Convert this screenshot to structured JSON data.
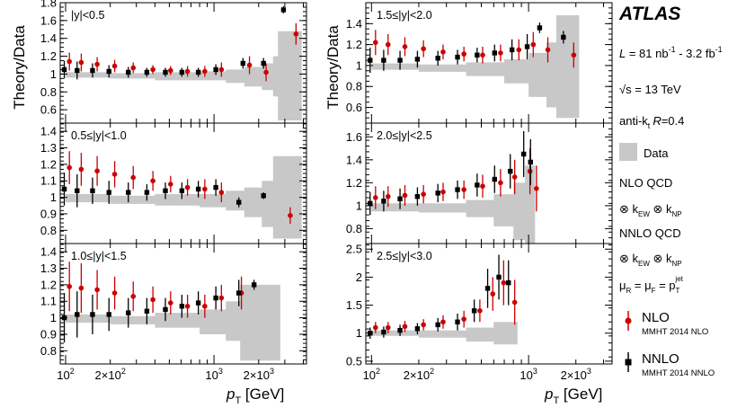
{
  "info": {
    "experiment": "ATLAS",
    "lumi_prefix": "L",
    "lumi_value": " = 81 nb",
    "lumi_exp1": "-1",
    "lumi_mid": " - 3.2 fb",
    "lumi_exp2": "-1",
    "sqrt_s_symbol": "√s",
    "energy": " = 13 TeV",
    "algo_prefix": "anti-k",
    "algo_sub": "t",
    "algo_R": "R",
    "algo_value": "=0.4"
  },
  "legend": {
    "data_label": "Data",
    "nlo_qcd": "NLO QCD",
    "kew_line": "⊗ k",
    "kew_sub": "EW",
    "knp_mid": " ⊗ k",
    "knp_sub": "NP",
    "nnlo_qcd": "NNLO QCD",
    "scale_mu": "μ",
    "scale_R": "R",
    "scale_eq": " = μ",
    "scale_F": "F",
    "scale_eq2": " = p",
    "scale_T": "T",
    "scale_jet": "jet",
    "nlo_name": "NLO",
    "nlo_pdf": "MMHT 2014 NLO",
    "nnlo_name": "NNLO",
    "nnlo_pdf": "MMHT 2014 NNLO"
  },
  "colors": {
    "data_band": "#c8c8c8",
    "nlo": "#cc0000",
    "nnlo": "#000000"
  },
  "axes": {
    "ylabel": "Theory/Data",
    "xlabel_p": "p",
    "xlabel_sub": "T",
    "xlabel_unit": " [GeV]",
    "x_tick_labels": [
      {
        "v": 100,
        "base": "10",
        "exp": "2"
      },
      {
        "v": 200,
        "base": "2×10",
        "exp": "2"
      },
      {
        "v": 1000,
        "base": "10",
        "exp": "3"
      },
      {
        "v": 2000,
        "base": "2×10",
        "exp": "3"
      }
    ]
  },
  "chart_data": [
    {
      "type": "scatter",
      "title": "|y|<0.5",
      "xscale": "log",
      "xlim": [
        92,
        4200
      ],
      "ylim": [
        0.45,
        1.8
      ],
      "yticks": [
        0.6,
        0.8,
        1,
        1.2,
        1.4,
        1.6,
        1.8
      ],
      "band": {
        "x": [
          100,
          200,
          400,
          800,
          1200,
          1600,
          2100,
          2500,
          2700,
          3000,
          3900
        ],
        "up": [
          1.02,
          1.01,
          1.02,
          1.03,
          1.05,
          1.08,
          1.12,
          1.2,
          1.48,
          1.48,
          1.48
        ],
        "down": [
          0.96,
          0.95,
          0.93,
          0.93,
          0.9,
          0.86,
          0.82,
          0.75,
          0.48,
          0.48,
          0.48
        ]
      },
      "series": [
        {
          "name": "NLO",
          "points": [
            [
              104,
              1.14,
              0.1
            ],
            [
              125,
              1.13,
              0.1
            ],
            [
              160,
              1.11,
              0.08
            ],
            [
              210,
              1.09,
              0.07
            ],
            [
              280,
              1.07,
              0.06
            ],
            [
              380,
              1.05,
              0.05
            ],
            [
              500,
              1.04,
              0.05
            ],
            [
              650,
              1.03,
              0.06
            ],
            [
              850,
              1.03,
              0.06
            ],
            [
              1100,
              1.05,
              0.08
            ],
            [
              1700,
              1.1,
              0.1
            ],
            [
              2200,
              1.02,
              0.1
            ],
            [
              3500,
              1.45,
              0.12
            ]
          ]
        },
        {
          "name": "NNLO",
          "points": [
            [
              100,
              1.05,
              0.1
            ],
            [
              122,
              1.04,
              0.1
            ],
            [
              155,
              1.04,
              0.08
            ],
            [
              200,
              1.03,
              0.07
            ],
            [
              270,
              1.02,
              0.06
            ],
            [
              360,
              1.02,
              0.05
            ],
            [
              480,
              1.02,
              0.05
            ],
            [
              620,
              1.02,
              0.05
            ],
            [
              800,
              1.02,
              0.05
            ],
            [
              1050,
              1.05,
              0.06
            ],
            [
              1600,
              1.12,
              0.06
            ],
            [
              2200,
              1.12,
              0.06
            ],
            [
              3000,
              1.72,
              0.04
            ]
          ]
        }
      ]
    },
    {
      "type": "scatter",
      "title": "0.5≤|y|<1.0",
      "xscale": "log",
      "xlim": [
        92,
        4200
      ],
      "ylim": [
        0.72,
        1.45
      ],
      "yticks": [
        0.8,
        0.9,
        1,
        1.1,
        1.2,
        1.3,
        1.4
      ],
      "band": {
        "x": [
          100,
          200,
          400,
          800,
          1200,
          1600,
          2100,
          2500,
          3000,
          3900
        ],
        "up": [
          1.02,
          1.01,
          1.02,
          1.02,
          1.04,
          1.06,
          1.1,
          1.25,
          1.25,
          1.25
        ],
        "down": [
          0.97,
          0.96,
          0.95,
          0.94,
          0.92,
          0.88,
          0.82,
          0.75,
          0.75,
          0.75
        ]
      },
      "series": [
        {
          "name": "NLO",
          "points": [
            [
              104,
              1.18,
              0.1
            ],
            [
              125,
              1.17,
              0.1
            ],
            [
              160,
              1.16,
              0.09
            ],
            [
              210,
              1.14,
              0.08
            ],
            [
              280,
              1.12,
              0.07
            ],
            [
              380,
              1.1,
              0.06
            ],
            [
              500,
              1.08,
              0.05
            ],
            [
              650,
              1.06,
              0.05
            ],
            [
              850,
              1.05,
              0.06
            ],
            [
              1100,
              1.03,
              0.06
            ],
            [
              3200,
              0.89,
              0.05
            ]
          ]
        },
        {
          "name": "NNLO",
          "points": [
            [
              100,
              1.05,
              0.1
            ],
            [
              122,
              1.04,
              0.1
            ],
            [
              155,
              1.04,
              0.08
            ],
            [
              200,
              1.03,
              0.07
            ],
            [
              270,
              1.03,
              0.06
            ],
            [
              360,
              1.03,
              0.05
            ],
            [
              480,
              1.04,
              0.05
            ],
            [
              620,
              1.04,
              0.05
            ],
            [
              800,
              1.05,
              0.05
            ],
            [
              1050,
              1.06,
              0.05
            ],
            [
              1500,
              0.97,
              0.03
            ],
            [
              2200,
              1.01,
              0.02
            ]
          ]
        }
      ]
    },
    {
      "type": "scatter",
      "title": "1.0≤|y|<1.5",
      "xscale": "log",
      "xlim": [
        92,
        4200
      ],
      "ylim": [
        0.72,
        1.45
      ],
      "yticks": [
        0.8,
        0.9,
        1,
        1.1,
        1.2,
        1.3,
        1.4
      ],
      "band": {
        "x": [
          100,
          200,
          400,
          800,
          1200,
          1500,
          1900,
          2500,
          2800
        ],
        "up": [
          1.02,
          1.01,
          1.03,
          1.05,
          1.1,
          1.2,
          1.2,
          1.2,
          1.2
        ],
        "down": [
          0.97,
          0.96,
          0.94,
          0.9,
          0.86,
          0.74,
          0.74,
          0.74,
          0.74
        ]
      },
      "series": [
        {
          "name": "NLO",
          "points": [
            [
              104,
              1.19,
              0.15
            ],
            [
              125,
              1.18,
              0.15
            ],
            [
              160,
              1.17,
              0.12
            ],
            [
              210,
              1.15,
              0.1
            ],
            [
              280,
              1.13,
              0.09
            ],
            [
              380,
              1.11,
              0.08
            ],
            [
              500,
              1.09,
              0.07
            ],
            [
              650,
              1.07,
              0.07
            ],
            [
              850,
              1.07,
              0.07
            ],
            [
              1100,
              1.12,
              0.08
            ],
            [
              1500,
              1.15,
              0.1
            ]
          ]
        },
        {
          "name": "NNLO",
          "points": [
            [
              100,
              1.0,
              0.15
            ],
            [
              122,
              1.02,
              0.14
            ],
            [
              155,
              1.02,
              0.12
            ],
            [
              200,
              1.02,
              0.1
            ],
            [
              270,
              1.03,
              0.09
            ],
            [
              360,
              1.04,
              0.08
            ],
            [
              480,
              1.05,
              0.07
            ],
            [
              620,
              1.07,
              0.07
            ],
            [
              800,
              1.09,
              0.07
            ],
            [
              1050,
              1.12,
              0.07
            ],
            [
              1500,
              1.15,
              0.08
            ],
            [
              1900,
              1.2,
              0.03
            ]
          ]
        }
      ]
    },
    {
      "type": "scatter",
      "title": "1.5≤|y|<2.0",
      "xscale": "log",
      "xlim": [
        92,
        3400
      ],
      "ylim": [
        0.45,
        1.6
      ],
      "yticks": [
        0.6,
        0.8,
        1,
        1.2,
        1.4
      ],
      "band": {
        "x": [
          100,
          200,
          400,
          700,
          1000,
          1300,
          1500,
          2100
        ],
        "up": [
          1.02,
          1.01,
          1.03,
          1.06,
          1.12,
          1.22,
          1.48,
          1.48
        ],
        "down": [
          0.96,
          0.94,
          0.9,
          0.83,
          0.7,
          0.6,
          0.5,
          0.5
        ]
      },
      "series": [
        {
          "name": "NLO",
          "points": [
            [
              104,
              1.22,
              0.12
            ],
            [
              125,
              1.2,
              0.1
            ],
            [
              160,
              1.18,
              0.09
            ],
            [
              210,
              1.16,
              0.08
            ],
            [
              280,
              1.13,
              0.07
            ],
            [
              380,
              1.11,
              0.07
            ],
            [
              500,
              1.1,
              0.08
            ],
            [
              650,
              1.12,
              0.08
            ],
            [
              850,
              1.15,
              0.1
            ],
            [
              1050,
              1.2,
              0.12
            ],
            [
              1300,
              1.15,
              0.12
            ],
            [
              1900,
              1.1,
              0.12
            ]
          ]
        },
        {
          "name": "NNLO",
          "points": [
            [
              100,
              1.05,
              0.12
            ],
            [
              122,
              1.05,
              0.1
            ],
            [
              155,
              1.05,
              0.09
            ],
            [
              200,
              1.06,
              0.08
            ],
            [
              270,
              1.07,
              0.07
            ],
            [
              360,
              1.08,
              0.07
            ],
            [
              480,
              1.1,
              0.07
            ],
            [
              620,
              1.12,
              0.08
            ],
            [
              800,
              1.15,
              0.1
            ],
            [
              1000,
              1.18,
              0.12
            ],
            [
              1200,
              1.36,
              0.05
            ],
            [
              1700,
              1.27,
              0.06
            ]
          ]
        }
      ]
    },
    {
      "type": "scatter",
      "title": "2.0≤|y|<2.5",
      "xscale": "log",
      "xlim": [
        92,
        3400
      ],
      "ylim": [
        0.67,
        1.72
      ],
      "yticks": [
        0.8,
        1,
        1.2,
        1.4,
        1.6
      ],
      "band": {
        "x": [
          100,
          200,
          400,
          600,
          800,
          950,
          1100
        ],
        "up": [
          1.02,
          1.02,
          1.05,
          1.1,
          1.2,
          1.35,
          1.35
        ],
        "down": [
          0.95,
          0.94,
          0.9,
          0.82,
          0.7,
          0.6,
          0.6
        ]
      },
      "series": [
        {
          "name": "NLO",
          "points": [
            [
              104,
              1.07,
              0.1
            ],
            [
              125,
              1.08,
              0.09
            ],
            [
              160,
              1.09,
              0.09
            ],
            [
              210,
              1.1,
              0.08
            ],
            [
              280,
              1.12,
              0.08
            ],
            [
              380,
              1.14,
              0.08
            ],
            [
              500,
              1.17,
              0.1
            ],
            [
              650,
              1.2,
              0.12
            ],
            [
              800,
              1.25,
              0.15
            ],
            [
              1000,
              1.3,
              0.2
            ],
            [
              1100,
              1.15,
              0.2
            ]
          ]
        },
        {
          "name": "NNLO",
          "points": [
            [
              100,
              1.02,
              0.1
            ],
            [
              122,
              1.04,
              0.09
            ],
            [
              155,
              1.06,
              0.09
            ],
            [
              200,
              1.08,
              0.08
            ],
            [
              270,
              1.11,
              0.08
            ],
            [
              360,
              1.14,
              0.08
            ],
            [
              480,
              1.18,
              0.1
            ],
            [
              620,
              1.23,
              0.12
            ],
            [
              780,
              1.3,
              0.15
            ],
            [
              950,
              1.45,
              0.2
            ],
            [
              1050,
              1.38,
              0.2
            ]
          ]
        }
      ]
    },
    {
      "type": "scatter",
      "title": "2.5≤|y|<3.0",
      "xscale": "log",
      "xlim": [
        92,
        3400
      ],
      "ylim": [
        0.45,
        2.6
      ],
      "yticks": [
        0.5,
        1,
        1.5,
        2,
        2.5
      ],
      "band": {
        "x": [
          100,
          200,
          400,
          600,
          700,
          850
        ],
        "up": [
          1.05,
          1.05,
          1.1,
          1.2,
          1.2,
          1.2
        ],
        "down": [
          0.95,
          0.92,
          0.85,
          0.8,
          0.8,
          0.8
        ]
      },
      "series": [
        {
          "name": "NLO",
          "points": [
            [
              104,
              1.1,
              0.1
            ],
            [
              125,
              1.1,
              0.1
            ],
            [
              160,
              1.12,
              0.1
            ],
            [
              210,
              1.15,
              0.1
            ],
            [
              280,
              1.2,
              0.12
            ],
            [
              380,
              1.25,
              0.15
            ],
            [
              480,
              1.4,
              0.2
            ],
            [
              580,
              1.7,
              0.3
            ],
            [
              680,
              1.9,
              0.4
            ],
            [
              800,
              1.55,
              0.4
            ]
          ]
        },
        {
          "name": "NNLO",
          "points": [
            [
              100,
              1.0,
              0.1
            ],
            [
              122,
              1.02,
              0.1
            ],
            [
              155,
              1.05,
              0.1
            ],
            [
              200,
              1.08,
              0.1
            ],
            [
              270,
              1.15,
              0.12
            ],
            [
              360,
              1.2,
              0.15
            ],
            [
              460,
              1.4,
              0.2
            ],
            [
              560,
              1.8,
              0.35
            ],
            [
              660,
              2.0,
              0.4
            ],
            [
              760,
              1.9,
              0.4
            ]
          ]
        }
      ]
    }
  ]
}
